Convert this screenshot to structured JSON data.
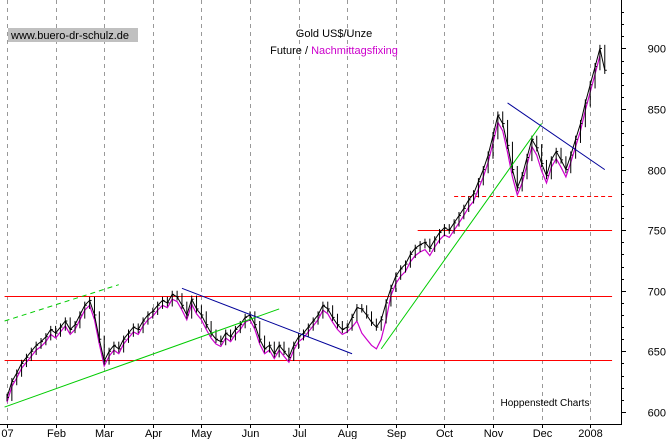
{
  "chart_data": {
    "type": "line",
    "title": "Gold US$/Unze",
    "subtitle_future": "Future / ",
    "subtitle_fixing": "Nachmittagsfixing",
    "watermark": "www.buero-dr-schulz.de",
    "credit": "Hoppenstedt Charts",
    "ylim": [
      590,
      940
    ],
    "y_ticks": [
      600,
      650,
      700,
      750,
      800,
      850,
      900
    ],
    "y_axis_side": "right",
    "grid": "vertical dashed",
    "x_tick_labels": [
      "07",
      "Feb",
      "Mar",
      "Apr",
      "May",
      "Jun",
      "Jul",
      "Aug",
      "Sep",
      "Oct",
      "Nov",
      "Dec",
      "2008"
    ],
    "x_tick_pos": [
      0,
      1,
      2,
      3,
      4,
      5,
      6,
      7,
      8,
      9,
      10,
      11,
      12
    ],
    "xlim": [
      -0.05,
      12.45
    ],
    "colors": {
      "future": "#000000",
      "fixing": "#cc00cc",
      "horizontal_lines": "#ff0000",
      "trend_up": "#00cc00",
      "trend_down": "#000099",
      "watermark_bg": "#c0c0c0"
    },
    "series": [
      {
        "name": "Future",
        "x": [
          0.0,
          0.1,
          0.2,
          0.3,
          0.4,
          0.5,
          0.6,
          0.7,
          0.8,
          0.9,
          1.0,
          1.1,
          1.2,
          1.3,
          1.4,
          1.5,
          1.6,
          1.7,
          1.8,
          1.9,
          2.0,
          2.1,
          2.2,
          2.3,
          2.4,
          2.5,
          2.6,
          2.7,
          2.8,
          2.9,
          3.0,
          3.1,
          3.2,
          3.3,
          3.4,
          3.5,
          3.6,
          3.7,
          3.8,
          3.9,
          4.0,
          4.1,
          4.2,
          4.3,
          4.4,
          4.5,
          4.6,
          4.7,
          4.8,
          4.9,
          5.0,
          5.1,
          5.2,
          5.3,
          5.4,
          5.5,
          5.6,
          5.7,
          5.8,
          5.9,
          6.0,
          6.1,
          6.2,
          6.3,
          6.4,
          6.5,
          6.6,
          6.7,
          6.8,
          6.9,
          7.0,
          7.1,
          7.2,
          7.3,
          7.4,
          7.5,
          7.6,
          7.7,
          7.8,
          7.9,
          8.0,
          8.1,
          8.2,
          8.3,
          8.4,
          8.5,
          8.6,
          8.7,
          8.8,
          8.9,
          9.0,
          9.1,
          9.2,
          9.3,
          9.4,
          9.5,
          9.6,
          9.7,
          9.8,
          9.9,
          10.0,
          10.1,
          10.2,
          10.3,
          10.4,
          10.5,
          10.6,
          10.7,
          10.8,
          10.9,
          11.0,
          11.1,
          11.2,
          11.3,
          11.4,
          11.5,
          11.6,
          11.7,
          11.8,
          11.9,
          12.0,
          12.1,
          12.2,
          12.3
        ],
        "values": [
          612,
          625,
          632,
          640,
          645,
          650,
          655,
          658,
          662,
          668,
          665,
          670,
          675,
          668,
          672,
          680,
          688,
          692,
          680,
          660,
          642,
          650,
          655,
          652,
          660,
          665,
          670,
          668,
          675,
          680,
          683,
          688,
          692,
          690,
          697,
          695,
          688,
          680,
          693,
          685,
          680,
          672,
          665,
          660,
          658,
          665,
          662,
          668,
          672,
          678,
          680,
          672,
          660,
          652,
          655,
          648,
          655,
          650,
          645,
          655,
          662,
          665,
          670,
          675,
          680,
          688,
          685,
          678,
          672,
          668,
          670,
          678,
          686,
          685,
          680,
          674,
          670,
          676,
          690,
          702,
          712,
          718,
          722,
          730,
          735,
          738,
          740,
          735,
          742,
          748,
          752,
          750,
          756,
          762,
          768,
          775,
          780,
          790,
          800,
          812,
          828,
          845,
          838,
          820,
          800,
          785,
          795,
          810,
          825,
          818,
          805,
          795,
          808,
          815,
          808,
          800,
          812,
          825,
          838,
          855,
          870,
          885,
          900,
          882
        ]
      },
      {
        "name": "Nachmittagsfixing",
        "x": [
          0.0,
          0.1,
          0.2,
          0.3,
          0.4,
          0.5,
          0.6,
          0.7,
          0.8,
          0.9,
          1.0,
          1.1,
          1.2,
          1.3,
          1.4,
          1.5,
          1.6,
          1.7,
          1.8,
          1.9,
          2.0,
          2.1,
          2.2,
          2.3,
          2.4,
          2.5,
          2.6,
          2.7,
          2.8,
          2.9,
          3.0,
          3.1,
          3.2,
          3.3,
          3.4,
          3.5,
          3.6,
          3.7,
          3.8,
          3.9,
          4.0,
          4.1,
          4.2,
          4.3,
          4.4,
          4.5,
          4.6,
          4.7,
          4.8,
          4.9,
          5.0,
          5.1,
          5.2,
          5.3,
          5.4,
          5.5,
          5.6,
          5.7,
          5.8,
          5.9,
          6.0,
          6.1,
          6.2,
          6.3,
          6.4,
          6.5,
          6.6,
          6.7,
          6.8,
          6.9,
          7.0,
          7.1,
          7.2,
          7.3,
          7.4,
          7.5,
          7.6,
          7.7,
          7.8,
          7.9,
          8.0,
          8.1,
          8.2,
          8.3,
          8.4,
          8.5,
          8.6,
          8.7,
          8.8,
          8.9,
          9.0,
          9.1,
          9.2,
          9.3,
          9.4,
          9.5,
          9.6,
          9.7,
          9.8,
          9.9,
          10.0,
          10.1,
          10.2,
          10.3,
          10.4,
          10.5,
          10.6,
          10.7,
          10.8,
          10.9,
          11.0,
          11.1,
          11.2,
          11.3,
          11.4,
          11.5,
          11.6,
          11.7,
          11.8,
          11.9,
          12.0,
          12.1,
          12.2
        ],
        "values": [
          608,
          621,
          628,
          636,
          641,
          646,
          651,
          654,
          658,
          664,
          661,
          666,
          671,
          664,
          668,
          676,
          684,
          688,
          676,
          656,
          638,
          646,
          651,
          648,
          656,
          661,
          666,
          664,
          671,
          676,
          679,
          684,
          688,
          686,
          693,
          691,
          684,
          676,
          689,
          681,
          676,
          668,
          661,
          656,
          654,
          661,
          658,
          664,
          668,
          674,
          676,
          668,
          656,
          648,
          651,
          644,
          651,
          646,
          641,
          651,
          658,
          661,
          666,
          671,
          676,
          684,
          681,
          674,
          668,
          664,
          666,
          670,
          675,
          665,
          660,
          655,
          652,
          660,
          676,
          696,
          706,
          712,
          716,
          724,
          729,
          732,
          734,
          729,
          736,
          742,
          746,
          744,
          750,
          756,
          762,
          769,
          774,
          784,
          794,
          806,
          822,
          839,
          832,
          814,
          794,
          779,
          789,
          804,
          819,
          812,
          799,
          789,
          802,
          809,
          802,
          794,
          806,
          819,
          832,
          849,
          864,
          879,
          894
        ]
      }
    ],
    "horizontal_lines": [
      {
        "y": 696,
        "x_from": -0.05,
        "x_to": 12.45,
        "style": "solid"
      },
      {
        "y": 643,
        "x_from": -0.05,
        "x_to": 12.45,
        "style": "solid"
      },
      {
        "y": 750,
        "x_from": 8.45,
        "x_to": 12.45,
        "style": "solid"
      },
      {
        "y": 778,
        "x_from": 9.2,
        "x_to": 12.45,
        "style": "dashed"
      }
    ],
    "trend_lines": [
      {
        "color_key": "trend_up",
        "style": "solid",
        "x1": -0.05,
        "y1": 604,
        "x2": 5.6,
        "y2": 685
      },
      {
        "color_key": "trend_up",
        "style": "dashed",
        "x1": -0.05,
        "y1": 675,
        "x2": 2.3,
        "y2": 705
      },
      {
        "color_key": "trend_down",
        "style": "solid",
        "x1": 3.6,
        "y1": 702,
        "x2": 7.1,
        "y2": 648
      },
      {
        "color_key": "trend_up",
        "style": "solid",
        "x1": 7.7,
        "y1": 652,
        "x2": 11.0,
        "y2": 838
      },
      {
        "color_key": "trend_down",
        "style": "solid",
        "x1": 10.3,
        "y1": 855,
        "x2": 12.3,
        "y2": 800
      }
    ]
  }
}
